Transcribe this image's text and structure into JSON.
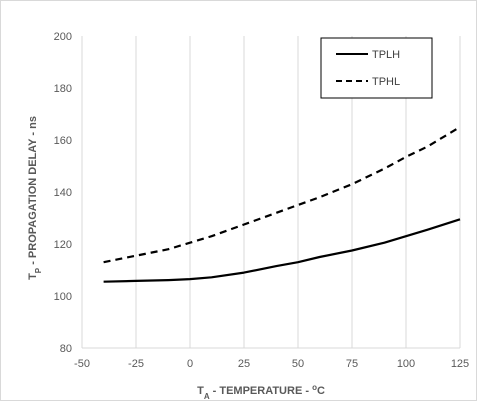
{
  "chart_data": {
    "type": "line",
    "xlabel": {
      "main": "T",
      "sub": "A",
      "rest": " - TEMPERATURE - ",
      "sup": "o",
      "unit": "C"
    },
    "ylabel": {
      "main": "T",
      "sub": "P",
      "rest": " - PROPAGATION DELAY - ns"
    },
    "xlim": [
      -50,
      125
    ],
    "ylim": [
      80,
      200
    ],
    "x_ticks": [
      -50,
      -25,
      0,
      25,
      50,
      75,
      100,
      125
    ],
    "y_ticks": [
      80,
      100,
      120,
      140,
      160,
      180,
      200
    ],
    "grid": {
      "vertical": true,
      "horizontal": false
    },
    "legend": {
      "position": "top-right"
    },
    "series": [
      {
        "name": "TPLH",
        "style": "solid",
        "color": "#000000",
        "x": [
          -40,
          -25,
          -10,
          0,
          10,
          25,
          40,
          50,
          60,
          75,
          90,
          100,
          110,
          125
        ],
        "y": [
          105.5,
          105.8,
          106.1,
          106.5,
          107.2,
          109,
          111.5,
          113,
          115,
          117.5,
          120.5,
          123,
          125.5,
          129.5
        ]
      },
      {
        "name": "TPHL",
        "style": "dashed",
        "color": "#000000",
        "x": [
          -40,
          -25,
          -10,
          0,
          10,
          25,
          40,
          50,
          60,
          75,
          90,
          100,
          110,
          125
        ],
        "y": [
          113,
          115.5,
          118,
          120.5,
          123,
          127.5,
          132,
          135,
          138,
          143,
          149,
          153.5,
          157.5,
          165
        ]
      }
    ]
  }
}
